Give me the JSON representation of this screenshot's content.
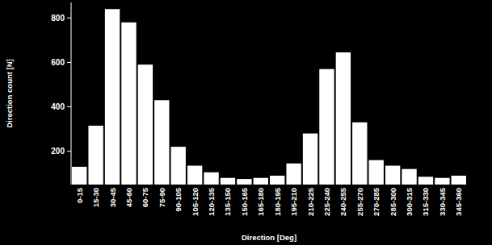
{
  "chart_data": {
    "type": "bar",
    "x_label": "Direction [Deg]",
    "y_label": "Direction count [N]",
    "categories": [
      "0-15",
      "15-30",
      "30-45",
      "45-60",
      "60-75",
      "75-90",
      "90-105",
      "105-120",
      "120-135",
      "135-150",
      "150-165",
      "165-180",
      "180-195",
      "195-210",
      "210-225",
      "225-240",
      "240-255",
      "255-270",
      "270-285",
      "285-300",
      "300-315",
      "315-330",
      "330-345",
      "345-360"
    ],
    "values": [
      130,
      315,
      840,
      780,
      590,
      430,
      220,
      135,
      105,
      80,
      75,
      80,
      90,
      145,
      280,
      570,
      645,
      330,
      160,
      135,
      120,
      85,
      80,
      90
    ],
    "color": "#ffffff",
    "ylim": [
      50,
      870
    ],
    "yticks": [
      200,
      400,
      600,
      800
    ],
    "grid": false
  }
}
